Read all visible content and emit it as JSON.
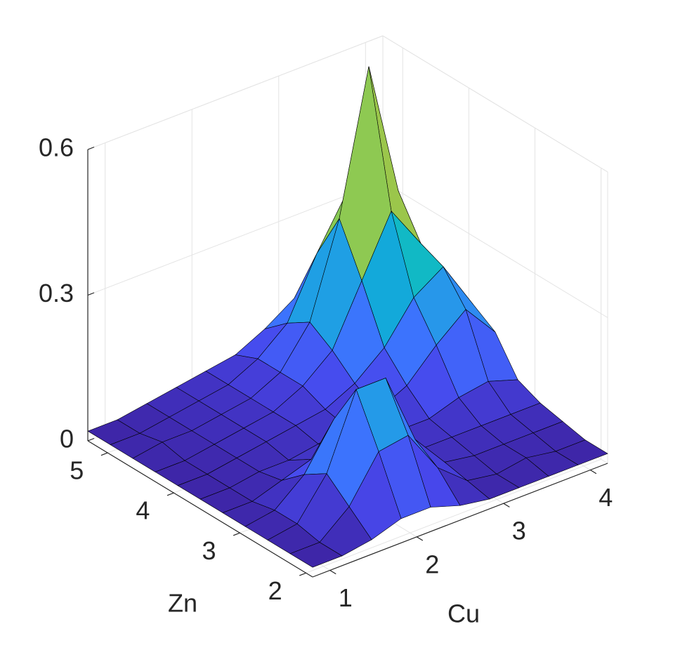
{
  "chart_data": {
    "type": "surface",
    "x_label": "Cu",
    "y_label": "Zn",
    "x": [
      0.8,
      1.14,
      1.48,
      1.82,
      2.16,
      2.5,
      2.84,
      3.18,
      3.52,
      3.86,
      4.2
    ],
    "y": [
      1.9,
      2.24,
      2.58,
      2.92,
      3.26,
      3.6,
      3.94,
      4.28,
      4.62,
      4.96,
      5.3
    ],
    "z": [
      [
        0.02,
        0.02,
        0.03,
        0.05,
        0.05,
        0.03,
        0.02,
        0.02,
        0.02,
        0.02,
        0.02
      ],
      [
        0.02,
        0.02,
        0.07,
        0.16,
        0.17,
        0.08,
        0.03,
        0.02,
        0.03,
        0.02,
        0.02
      ],
      [
        0.02,
        0.03,
        0.11,
        0.26,
        0.26,
        0.11,
        0.04,
        0.03,
        0.03,
        0.03,
        0.03
      ],
      [
        0.02,
        0.03,
        0.08,
        0.17,
        0.17,
        0.08,
        0.04,
        0.04,
        0.04,
        0.04,
        0.04
      ],
      [
        0.02,
        0.02,
        0.04,
        0.06,
        0.06,
        0.05,
        0.05,
        0.05,
        0.07,
        0.08,
        0.06
      ],
      [
        0.02,
        0.02,
        0.03,
        0.03,
        0.04,
        0.05,
        0.06,
        0.09,
        0.15,
        0.2,
        0.13
      ],
      [
        0.02,
        0.02,
        0.03,
        0.04,
        0.05,
        0.06,
        0.09,
        0.14,
        0.22,
        0.26,
        0.16
      ],
      [
        0.02,
        0.02,
        0.03,
        0.04,
        0.05,
        0.08,
        0.13,
        0.25,
        0.37,
        0.28,
        0.15
      ],
      [
        0.02,
        0.03,
        0.03,
        0.04,
        0.05,
        0.08,
        0.16,
        0.35,
        0.64,
        0.36,
        0.16
      ],
      [
        0.02,
        0.02,
        0.03,
        0.04,
        0.05,
        0.08,
        0.13,
        0.25,
        0.35,
        0.25,
        0.13
      ],
      [
        0.02,
        0.02,
        0.03,
        0.04,
        0.05,
        0.06,
        0.09,
        0.13,
        0.16,
        0.13,
        0.09
      ]
    ],
    "xlim": [
      0.8,
      4.2
    ],
    "ylim": [
      1.9,
      5.3
    ],
    "zlim": [
      0,
      0.6
    ],
    "xticks": [
      1,
      2,
      3,
      4
    ],
    "yticks": [
      2,
      3,
      4,
      5
    ],
    "zticks": [
      0,
      0.3,
      0.6
    ],
    "colormap": "parula",
    "grid": true
  }
}
